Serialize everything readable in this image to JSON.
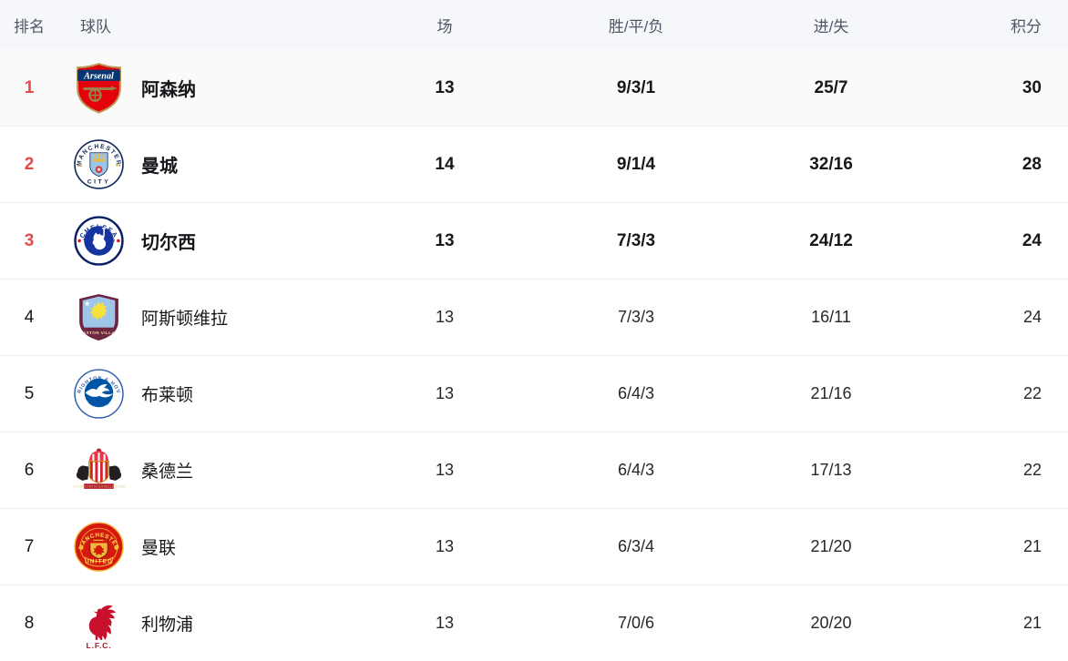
{
  "table": {
    "header": {
      "rank": "排名",
      "team": "球队",
      "played": "场",
      "wdl": "胜/平/负",
      "goals": "进/失",
      "points": "积分"
    },
    "rows": [
      {
        "rank": "1",
        "team": "阿森纳",
        "logo": "arsenal",
        "played": "13",
        "wdl": "9/3/1",
        "goals": "25/7",
        "points": "30"
      },
      {
        "rank": "2",
        "team": "曼城",
        "logo": "man-city",
        "played": "14",
        "wdl": "9/1/4",
        "goals": "32/16",
        "points": "28"
      },
      {
        "rank": "3",
        "team": "切尔西",
        "logo": "chelsea",
        "played": "13",
        "wdl": "7/3/3",
        "goals": "24/12",
        "points": "24"
      },
      {
        "rank": "4",
        "team": "阿斯顿维拉",
        "logo": "aston-villa",
        "played": "13",
        "wdl": "7/3/3",
        "goals": "16/11",
        "points": "24"
      },
      {
        "rank": "5",
        "team": "布莱顿",
        "logo": "brighton",
        "played": "13",
        "wdl": "6/4/3",
        "goals": "21/16",
        "points": "22"
      },
      {
        "rank": "6",
        "team": "桑德兰",
        "logo": "sunderland",
        "played": "13",
        "wdl": "6/4/3",
        "goals": "17/13",
        "points": "22"
      },
      {
        "rank": "7",
        "team": "曼联",
        "logo": "man-united",
        "played": "13",
        "wdl": "6/3/4",
        "goals": "21/20",
        "points": "21"
      },
      {
        "rank": "8",
        "team": "利物浦",
        "logo": "liverpool",
        "played": "13",
        "wdl": "7/0/6",
        "goals": "20/20",
        "points": "21"
      }
    ]
  },
  "colors": {
    "top_rank_red": "#e4494e",
    "header_bg": "#f6f7fa",
    "first_row_bg": "#fafafa",
    "divider": "#e9ecf2",
    "header_text": "#4e5666",
    "body_text": "#17181c"
  }
}
